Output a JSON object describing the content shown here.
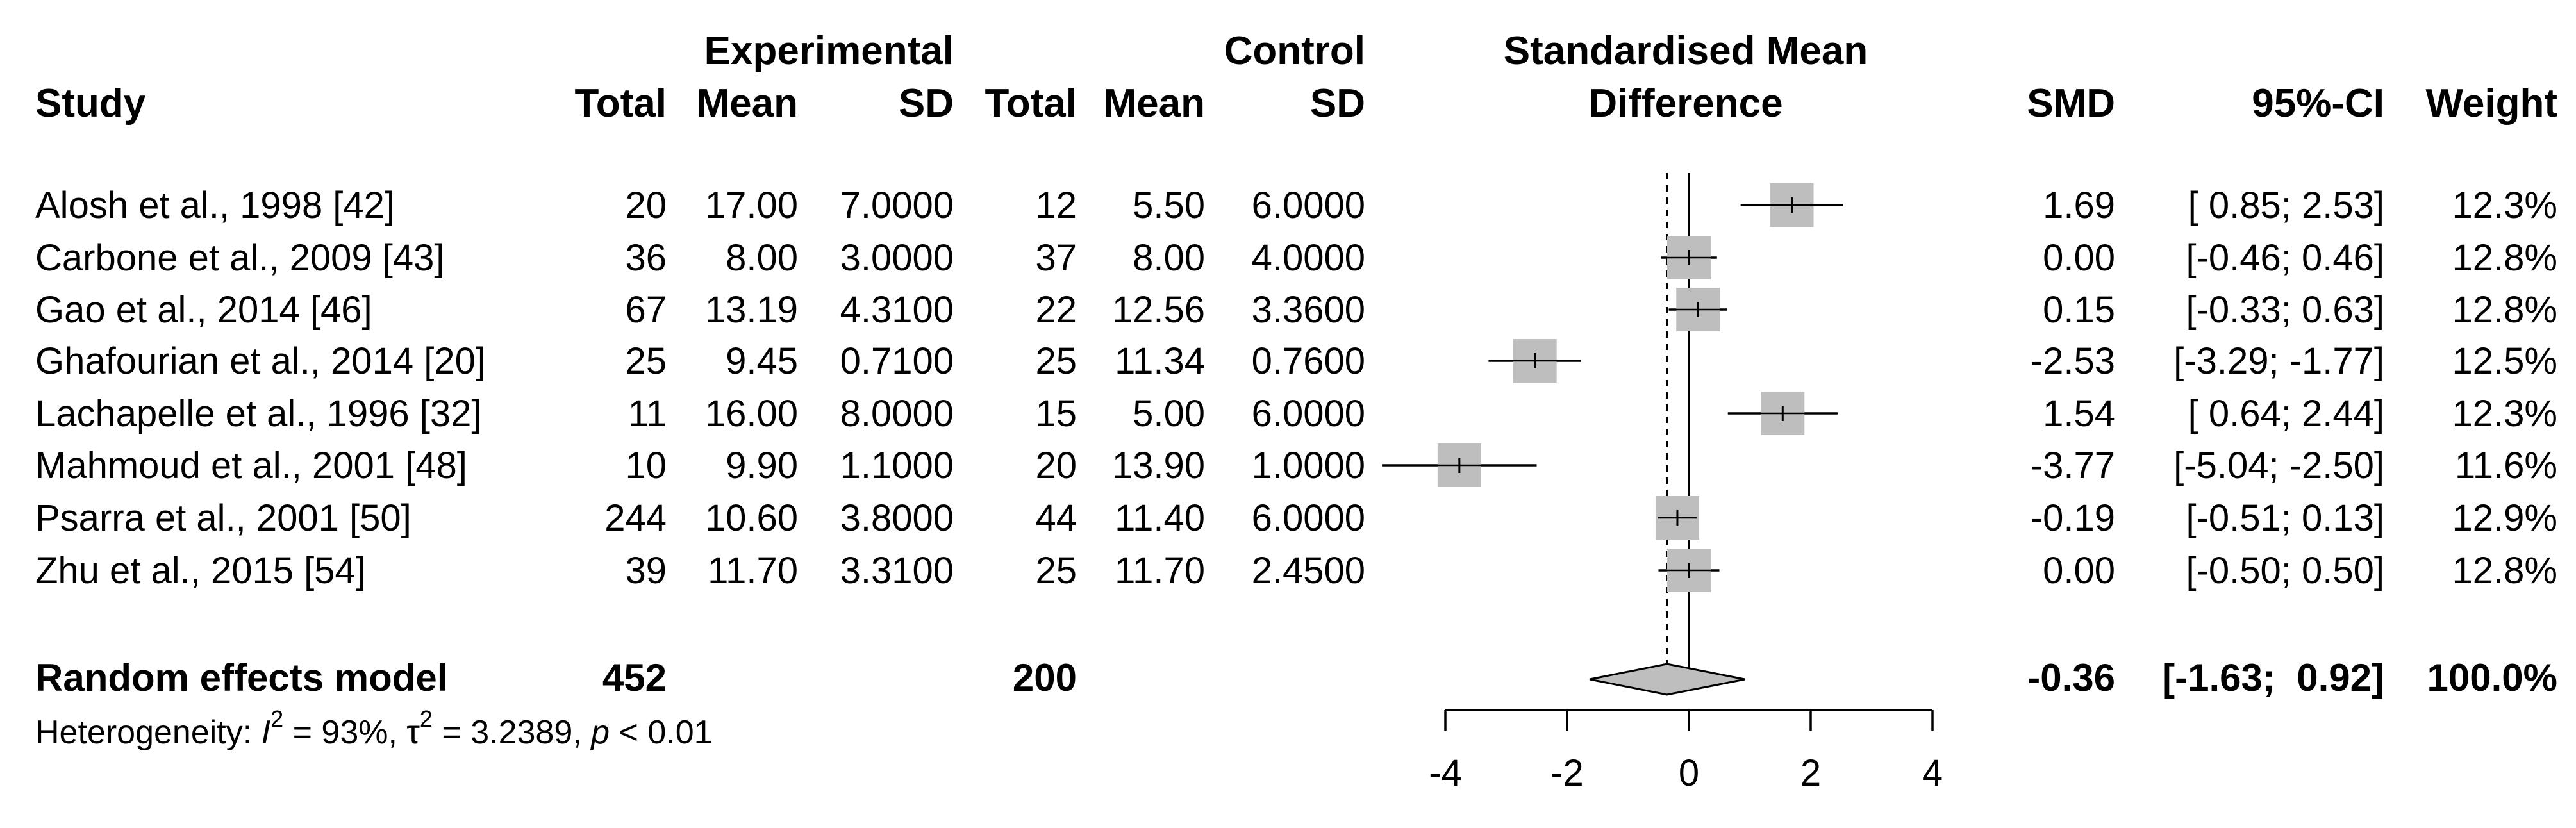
{
  "header": {
    "experimental": "Experimental",
    "control": "Control",
    "smd_title_line1": "Standardised Mean",
    "smd_title_line2": "Difference",
    "study": "Study",
    "total": "Total",
    "mean": "Mean",
    "sd": "SD",
    "smd": "SMD",
    "ci": "95%-CI",
    "weight": "Weight"
  },
  "studies": [
    {
      "study": "Alosh et al., 1998 [42]",
      "e_total": "20",
      "e_mean": "17.00",
      "e_sd": "7.0000",
      "c_total": "12",
      "c_mean": "5.50",
      "c_sd": "6.0000",
      "smd": "1.69",
      "ci": "[ 0.85;  2.53]",
      "weight": "12.3%"
    },
    {
      "study": "Carbone et al., 2009 [43]",
      "e_total": "36",
      "e_mean": "8.00",
      "e_sd": "3.0000",
      "c_total": "37",
      "c_mean": "8.00",
      "c_sd": "4.0000",
      "smd": "0.00",
      "ci": "[-0.46;  0.46]",
      "weight": "12.8%"
    },
    {
      "study": "Gao et al., 2014 [46]",
      "e_total": "67",
      "e_mean": "13.19",
      "e_sd": "4.3100",
      "c_total": "22",
      "c_mean": "12.56",
      "c_sd": "3.3600",
      "smd": "0.15",
      "ci": "[-0.33;  0.63]",
      "weight": "12.8%"
    },
    {
      "study": "Ghafourian et al., 2014 [20]",
      "e_total": "25",
      "e_mean": "9.45",
      "e_sd": "0.7100",
      "c_total": "25",
      "c_mean": "11.34",
      "c_sd": "0.7600",
      "smd": "-2.53",
      "ci": "[-3.29; -1.77]",
      "weight": "12.5%"
    },
    {
      "study": "Lachapelle et al., 1996 [32]",
      "e_total": "11",
      "e_mean": "16.00",
      "e_sd": "8.0000",
      "c_total": "15",
      "c_mean": "5.00",
      "c_sd": "6.0000",
      "smd": "1.54",
      "ci": "[ 0.64;  2.44]",
      "weight": "12.3%"
    },
    {
      "study": "Mahmoud et al., 2001 [48]",
      "e_total": "10",
      "e_mean": "9.90",
      "e_sd": "1.1000",
      "c_total": "20",
      "c_mean": "13.90",
      "c_sd": "1.0000",
      "smd": "-3.77",
      "ci": "[-5.04; -2.50]",
      "weight": "11.6%"
    },
    {
      "study": "Psarra et al., 2001 [50]",
      "e_total": "244",
      "e_mean": "10.60",
      "e_sd": "3.8000",
      "c_total": "44",
      "c_mean": "11.40",
      "c_sd": "6.0000",
      "smd": "-0.19",
      "ci": "[-0.51;  0.13]",
      "weight": "12.9%"
    },
    {
      "study": "Zhu et al., 2015 [54]",
      "e_total": "39",
      "e_mean": "11.70",
      "e_sd": "3.3100",
      "c_total": "25",
      "c_mean": "11.70",
      "c_sd": "2.4500",
      "smd": "0.00",
      "ci": "[-0.50;  0.50]",
      "weight": "12.8%"
    }
  ],
  "summary": {
    "label": "Random effects model",
    "e_total": "452",
    "c_total": "200",
    "smd": "-0.36",
    "ci": "[-1.63;  0.92]",
    "weight": "100.0%"
  },
  "heterogeneity": {
    "prefix": "Heterogeneity: ",
    "i_symbol": "I",
    "i_value": " = 93%, ",
    "tau_symbol": "τ",
    "tau_value": " = 3.2389, ",
    "p_symbol": "p",
    "p_value": " < 0.01",
    "sup": "2"
  },
  "colors": {
    "box": "#bebebe",
    "line": "#000000",
    "diamond": "#bebebe"
  },
  "chart_data": {
    "type": "forest",
    "x_range": [
      -4,
      4
    ],
    "x_ticks": [
      -4,
      -2,
      0,
      2,
      4
    ],
    "no_effect_line": 0,
    "summary_line": -0.36,
    "points": [
      {
        "smd": 1.69,
        "lower": 0.85,
        "upper": 2.53,
        "weight": 12.3
      },
      {
        "smd": 0.0,
        "lower": -0.46,
        "upper": 0.46,
        "weight": 12.8
      },
      {
        "smd": 0.15,
        "lower": -0.33,
        "upper": 0.63,
        "weight": 12.8
      },
      {
        "smd": -2.53,
        "lower": -3.29,
        "upper": -1.77,
        "weight": 12.5
      },
      {
        "smd": 1.54,
        "lower": 0.64,
        "upper": 2.44,
        "weight": 12.3
      },
      {
        "smd": -3.77,
        "lower": -5.04,
        "upper": -2.5,
        "weight": 11.6
      },
      {
        "smd": -0.19,
        "lower": -0.51,
        "upper": 0.13,
        "weight": 12.9
      },
      {
        "smd": 0.0,
        "lower": -0.5,
        "upper": 0.5,
        "weight": 12.8
      }
    ],
    "summary": {
      "smd": -0.36,
      "lower": -1.63,
      "upper": 0.92
    }
  }
}
